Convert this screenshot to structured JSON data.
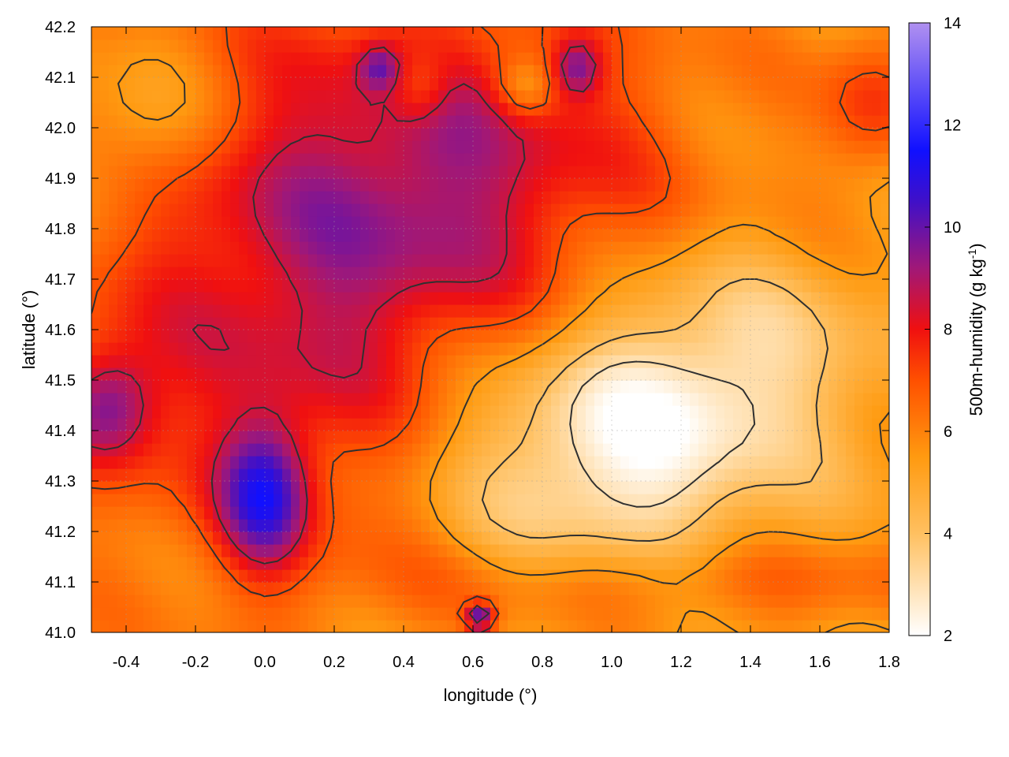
{
  "chart_data": {
    "type": "heatmap",
    "xlabel": "longitude (°)",
    "ylabel": "latitude (°)",
    "colorbar_label_main": "500m-humidity (g kg",
    "colorbar_label_sup": "-1",
    "colorbar_label_close": ")",
    "xlim": [
      -0.5,
      1.8
    ],
    "ylim": [
      41.0,
      42.2
    ],
    "zlim": [
      2,
      14
    ],
    "x_ticks": [
      -0.4,
      -0.2,
      0.0,
      0.2,
      0.4,
      0.6,
      0.8,
      1.0,
      1.2,
      1.4,
      1.6,
      1.8
    ],
    "x_tick_labels": [
      "-0.4",
      "-0.2",
      "0.0",
      "0.2",
      "0.4",
      "0.6",
      "0.8",
      "1.0",
      "1.2",
      "1.4",
      "1.6",
      "1.8"
    ],
    "y_ticks": [
      41.0,
      41.1,
      41.2,
      41.3,
      41.4,
      41.5,
      41.6,
      41.7,
      41.8,
      41.9,
      42.0,
      42.1,
      42.2
    ],
    "y_tick_labels": [
      "41.0",
      "41.1",
      "41.2",
      "41.3",
      "41.4",
      "41.5",
      "41.6",
      "41.7",
      "41.8",
      "41.9",
      "42.0",
      "42.1",
      "42.2"
    ],
    "colorbar_ticks": [
      2,
      4,
      6,
      8,
      10,
      12,
      14
    ],
    "colorbar_tick_labels": [
      "2",
      "4",
      "6",
      "8",
      "10",
      "12",
      "14"
    ],
    "grid": true,
    "colormap": [
      {
        "v": 2,
        "color": "#ffffff"
      },
      {
        "v": 4,
        "color": "#ffc060"
      },
      {
        "v": 5.5,
        "color": "#ff9a10"
      },
      {
        "v": 7,
        "color": "#ff5000"
      },
      {
        "v": 8,
        "color": "#f01010"
      },
      {
        "v": 9.2,
        "color": "#a01878"
      },
      {
        "v": 10.5,
        "color": "#4010c8"
      },
      {
        "v": 11.5,
        "color": "#1010ff"
      },
      {
        "v": 14,
        "color": "#b090f0"
      }
    ],
    "field_blobs": [
      {
        "x": 0.0,
        "y": 41.27,
        "sx": 0.09,
        "sy": 0.1,
        "a": 4.0
      },
      {
        "x": -0.45,
        "y": 41.45,
        "sx": 0.1,
        "sy": 0.08,
        "a": 3.0
      },
      {
        "x": 0.1,
        "y": 41.6,
        "sx": 0.5,
        "sy": 0.35,
        "a": 2.5
      },
      {
        "x": 0.55,
        "y": 41.95,
        "sx": 0.45,
        "sy": 0.25,
        "a": 2.5
      },
      {
        "x": 0.9,
        "y": 42.12,
        "sx": 0.05,
        "sy": 0.04,
        "a": 2.5
      },
      {
        "x": 0.33,
        "y": 42.12,
        "sx": 0.04,
        "sy": 0.03,
        "a": 2.0
      },
      {
        "x": 0.62,
        "y": 41.03,
        "sx": 0.03,
        "sy": 0.02,
        "a": 4.0
      },
      {
        "x": 1.2,
        "y": 41.1,
        "sx": 0.5,
        "sy": 0.06,
        "a": 1.5
      },
      {
        "x": 1.75,
        "y": 42.05,
        "sx": 0.1,
        "sy": 0.1,
        "a": 1.8
      },
      {
        "x": 0.95,
        "y": 41.35,
        "sx": 0.35,
        "sy": 0.18,
        "a": -3.5
      },
      {
        "x": 1.35,
        "y": 41.55,
        "sx": 0.3,
        "sy": 0.15,
        "a": -2.0
      },
      {
        "x": -0.35,
        "y": 42.0,
        "sx": 0.15,
        "sy": 0.1,
        "a": -1.5
      },
      {
        "x": 0.45,
        "y": 42.08,
        "sx": 0.06,
        "sy": 0.05,
        "a": -1.5
      },
      {
        "x": 0.75,
        "y": 42.08,
        "sx": 0.06,
        "sy": 0.04,
        "a": -1.8
      }
    ],
    "field_base": 5.6,
    "contour_levels": [
      3,
      4,
      5.5,
      7,
      8.5
    ]
  }
}
